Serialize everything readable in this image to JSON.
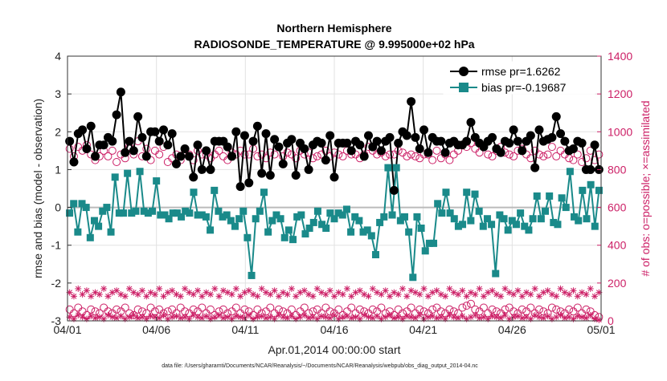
{
  "chart_data": {
    "type": "line",
    "title": "Northern Hemisphere",
    "subtitle": "RADIOSONDE_TEMPERATURE @ 9.995000e+02 hPa",
    "xlabel": "Apr.01,2014 00:00:00 start",
    "ylabel_left": "rmse and bias (model - observation)",
    "ylabel_right": "# of obs: o=possible; ×=assimilated",
    "footer": "data file: /Users/gharamti/Documents/NCAR/Reanalysis/~/Documents/NCAR/Reanalysis/webpub/obs_diag_output_2014-04.nc",
    "xlim": [
      0,
      30
    ],
    "ylim_left": [
      -3,
      4
    ],
    "ylim_right": [
      0,
      1400
    ],
    "x_ticks": [
      0,
      5,
      10,
      15,
      20,
      25,
      30
    ],
    "x_tick_labels": [
      "04/01",
      "04/06",
      "04/11",
      "04/16",
      "04/21",
      "04/26",
      "05/01"
    ],
    "y_left_ticks": [
      -3,
      -2,
      -1,
      0,
      1,
      2,
      3,
      4
    ],
    "y_left_tick_labels": [
      "-3",
      "-2",
      "-1",
      "0",
      "1",
      "2",
      "3",
      "4"
    ],
    "y_right_ticks": [
      0,
      200,
      400,
      600,
      800,
      1000,
      1200,
      1400
    ],
    "y_right_tick_labels": [
      "0",
      "200",
      "400",
      "600",
      "800",
      "1000",
      "1200",
      "1400"
    ],
    "grid": true,
    "zero_line": 0,
    "legend_position": "top-right",
    "colors": {
      "rmse": "#000000",
      "bias": "#1a8a8a",
      "counts": "#cc1f66",
      "axis": "#333333",
      "grid": "#e2e2e2",
      "zero": "#bbbbbb"
    },
    "series": [
      {
        "name": "rmse",
        "legend": "rmse pr=1.6262",
        "axis": "left",
        "values": [
          1.75,
          1.2,
          1.95,
          2.05,
          1.55,
          2.15,
          1.35,
          1.65,
          1.65,
          1.85,
          1.75,
          2.45,
          3.05,
          1.45,
          1.75,
          1.5,
          2.4,
          1.85,
          1.35,
          2.0,
          2.0,
          1.75,
          2.05,
          1.65,
          1.95,
          1.15,
          1.35,
          1.55,
          1.35,
          0.8,
          1.65,
          1.0,
          1.5,
          1.0,
          1.75,
          1.75,
          1.75,
          1.6,
          1.35,
          2.0,
          0.55,
          1.9,
          0.65,
          1.75,
          2.15,
          0.9,
          1.95,
          0.85,
          1.8,
          1.6,
          1.15,
          1.7,
          1.8,
          0.85,
          1.7,
          1.55,
          1.0,
          1.65,
          1.75,
          1.7,
          1.25,
          1.9,
          0.8,
          1.7,
          1.7,
          1.7,
          1.5,
          1.75,
          1.65,
          1.35,
          1.9,
          1.6,
          1.75,
          1.5,
          1.75,
          1.85,
          0.45,
          1.7,
          2.0,
          1.9,
          2.8,
          1.85,
          1.55,
          2.05,
          1.45,
          1.85,
          1.75,
          1.75,
          1.45,
          1.7,
          1.75,
          1.65,
          1.65,
          1.75,
          2.25,
          1.85,
          1.7,
          1.6,
          1.75,
          1.85,
          1.55,
          1.45,
          1.75,
          1.7,
          2.05,
          1.75,
          1.5,
          1.75,
          1.9,
          1.05,
          2.05,
          1.75,
          1.8,
          1.85,
          2.4,
          1.95,
          1.75,
          1.5,
          1.55,
          1.75,
          1.7,
          1.0,
          1.0,
          1.65,
          1.0
        ]
      },
      {
        "name": "bias",
        "legend": "bias pr=-0.19687",
        "axis": "left",
        "values": [
          -0.15,
          0.1,
          -0.65,
          0.1,
          0.0,
          -0.8,
          -0.35,
          -0.5,
          -0.1,
          0.0,
          -0.65,
          0.8,
          -0.15,
          -0.15,
          0.9,
          -0.15,
          -0.1,
          0.95,
          -0.1,
          -0.15,
          -0.1,
          0.7,
          -0.2,
          -0.2,
          -0.3,
          -0.15,
          -0.15,
          -0.25,
          -0.1,
          -0.15,
          0.4,
          -0.2,
          -0.2,
          -0.25,
          -0.6,
          0.45,
          -0.1,
          -0.25,
          -0.2,
          -0.35,
          -0.5,
          -0.3,
          -0.1,
          -0.8,
          -1.8,
          -0.3,
          -0.1,
          0.4,
          -0.65,
          -0.35,
          -0.2,
          -0.3,
          -0.8,
          -0.6,
          -0.85,
          -0.25,
          -0.2,
          -0.7,
          -0.55,
          -0.4,
          -0.1,
          -0.45,
          -0.55,
          -0.15,
          -0.3,
          -0.15,
          -0.2,
          -0.05,
          -0.65,
          -0.25,
          -0.35,
          -0.65,
          -0.6,
          -0.75,
          -1.25,
          -0.4,
          -0.25,
          1.05,
          -0.2,
          1.05,
          -0.35,
          -0.25,
          -0.65,
          -1.85,
          -0.25,
          -0.55,
          -1.15,
          -0.95,
          -0.95,
          0.1,
          -0.15,
          0.4,
          -0.15,
          -0.3,
          -0.5,
          -0.45,
          0.4,
          -0.35,
          0.35,
          -0.1,
          -0.5,
          -0.3,
          -0.45,
          -1.75,
          -0.2,
          -0.3,
          -0.6,
          -0.35,
          -0.45,
          -0.15,
          -0.5,
          -0.6,
          -0.3,
          0.3,
          -0.3,
          -0.1,
          0.3,
          -0.4,
          -0.45,
          0.25,
          0.0,
          0.95,
          -0.25,
          -0.35,
          0.45,
          -0.3,
          0.6,
          -0.5,
          0.45
        ]
      },
      {
        "name": "possible_rmse",
        "legend": "",
        "axis": "right",
        "marker": "circle",
        "values": [
          910,
          870,
          920,
          900,
          930,
          880,
          850,
          870,
          900,
          870,
          900,
          840,
          880,
          860,
          920,
          880,
          950,
          870,
          910,
          850,
          900,
          880,
          920,
          840,
          860,
          880,
          850,
          890,
          880,
          850,
          900,
          880,
          880,
          860,
          880,
          900,
          870,
          850,
          890,
          880,
          900,
          880,
          880,
          910,
          870,
          880,
          860,
          890,
          880,
          920,
          870,
          890,
          880,
          860,
          900,
          880,
          890,
          860,
          870,
          880,
          900,
          870,
          890,
          880,
          870,
          900,
          880,
          880,
          860,
          880,
          920,
          900,
          880,
          890,
          870,
          880,
          880,
          900,
          890,
          870,
          880,
          870,
          860,
          880,
          880,
          850,
          900,
          860,
          880,
          850,
          880,
          900,
          930,
          920,
          940,
          910,
          890,
          920,
          880,
          870,
          900,
          920,
          890,
          880,
          870,
          900,
          910,
          880,
          860,
          900,
          880,
          870,
          880,
          920,
          870,
          900,
          880,
          860,
          850,
          880,
          840,
          860,
          900,
          850,
          880
        ]
      },
      {
        "name": "possible_bias",
        "legend": "",
        "axis": "right",
        "marker": "circle",
        "values": [
          60,
          40,
          70,
          50,
          30,
          60,
          50,
          40,
          70,
          50,
          40,
          60,
          50,
          70,
          40,
          30,
          60,
          50,
          40,
          70,
          50,
          60,
          40,
          50,
          60,
          40,
          70,
          50,
          40,
          60,
          50,
          70,
          40,
          60,
          30,
          50,
          60,
          40,
          50,
          70,
          40,
          60,
          50,
          30,
          60,
          40,
          50,
          70,
          40,
          60,
          50,
          40,
          60,
          30,
          50,
          70,
          40,
          50,
          60,
          40,
          70,
          50,
          40,
          60,
          30,
          50,
          70,
          40,
          60,
          50,
          40,
          60,
          50,
          70,
          40,
          50,
          30,
          60,
          40,
          50,
          70,
          40,
          60,
          50,
          40,
          60,
          70,
          50,
          40,
          60,
          50,
          40,
          70,
          80,
          90,
          60,
          50,
          70,
          40,
          60,
          50,
          40,
          60,
          70,
          50,
          40,
          60,
          50,
          70,
          40,
          60,
          50,
          40,
          70,
          60,
          50,
          40,
          60,
          50,
          70,
          40,
          60,
          50,
          30,
          20
        ]
      },
      {
        "name": "assimilated_upper",
        "legend": "",
        "axis": "right",
        "marker": "asterisk",
        "values": [
          150,
          130,
          170,
          140,
          160,
          130,
          150,
          140,
          170,
          130,
          150,
          160,
          140,
          130,
          170,
          150,
          140,
          160,
          130,
          150,
          140,
          170,
          130,
          150,
          160,
          140,
          130,
          170,
          150,
          140,
          160,
          130,
          150,
          140,
          170,
          130,
          160,
          150,
          140,
          170,
          130,
          150,
          160,
          140,
          130,
          170,
          150,
          140,
          160,
          130,
          150,
          140,
          170,
          130,
          150,
          160,
          140,
          130,
          170,
          150,
          140,
          160,
          130,
          150,
          140,
          170,
          130,
          150,
          160,
          140,
          130,
          170,
          150,
          140,
          160,
          130,
          150,
          140,
          170,
          130,
          160,
          150,
          140,
          170,
          130,
          150,
          160,
          140,
          130,
          170,
          150,
          140,
          160,
          130,
          150,
          140,
          170,
          130,
          150,
          160,
          140,
          130,
          170,
          150,
          140,
          160,
          130,
          150,
          140,
          170,
          130,
          150,
          160,
          140,
          130,
          170,
          150,
          140,
          160,
          130,
          150,
          140,
          170,
          130,
          150
        ]
      },
      {
        "name": "assimilated_lower",
        "legend": "",
        "axis": "right",
        "marker": "asterisk",
        "values": [
          20,
          10,
          30,
          20,
          10,
          25,
          15,
          20,
          10,
          30,
          20,
          15,
          25,
          10,
          20,
          30,
          15,
          20,
          10,
          25,
          20,
          15,
          30,
          10,
          20,
          25,
          15,
          20,
          10,
          30,
          20,
          15,
          25,
          10,
          20,
          30,
          15,
          20,
          10,
          25,
          20,
          15,
          30,
          10,
          20,
          25,
          15,
          20,
          10,
          30,
          20,
          15,
          25,
          10,
          20,
          30,
          15,
          20,
          10,
          25,
          20,
          15,
          30,
          10,
          20,
          25,
          15,
          20,
          10,
          30,
          20,
          15,
          25,
          10,
          20,
          30,
          15,
          20,
          10,
          25,
          20,
          15,
          30,
          10,
          20,
          25,
          15,
          20,
          10,
          30,
          20,
          15,
          25,
          10,
          20,
          30,
          15,
          20,
          10,
          25,
          20,
          15,
          30,
          10,
          20,
          25,
          15,
          20,
          10,
          30,
          20,
          15,
          25,
          10,
          20,
          30,
          15,
          20,
          10,
          25,
          20,
          15,
          30,
          10,
          5
        ]
      }
    ]
  }
}
